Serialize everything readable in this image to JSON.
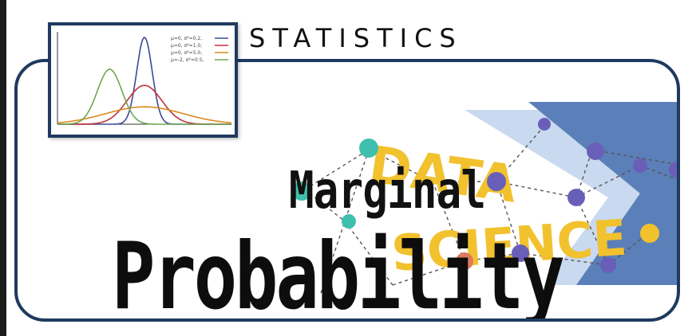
{
  "header": {
    "category": "STATISTICS"
  },
  "title": {
    "line1": "Marginal",
    "line2": "Probability"
  },
  "background_art": {
    "word1": "DATA",
    "word2": "SCIENCE"
  },
  "inset_chart": {
    "legend": [
      {
        "label": "μ=0,  σ²=0.2,",
        "color": "#3b4a9c"
      },
      {
        "label": "μ=0,  σ²=1.0,",
        "color": "#c0333a"
      },
      {
        "label": "μ=0,  σ²=5.0,",
        "color": "#d98a1a"
      },
      {
        "label": "μ=-2, σ²=0.5,",
        "color": "#6aa84f"
      }
    ]
  },
  "colors": {
    "frame": "#1f3a5f",
    "accent_yellow": "#f2c12e",
    "accent_teal": "#3fbfad",
    "accent_blue": "#5b7bb5",
    "node_purple": "#6a5fb8"
  }
}
